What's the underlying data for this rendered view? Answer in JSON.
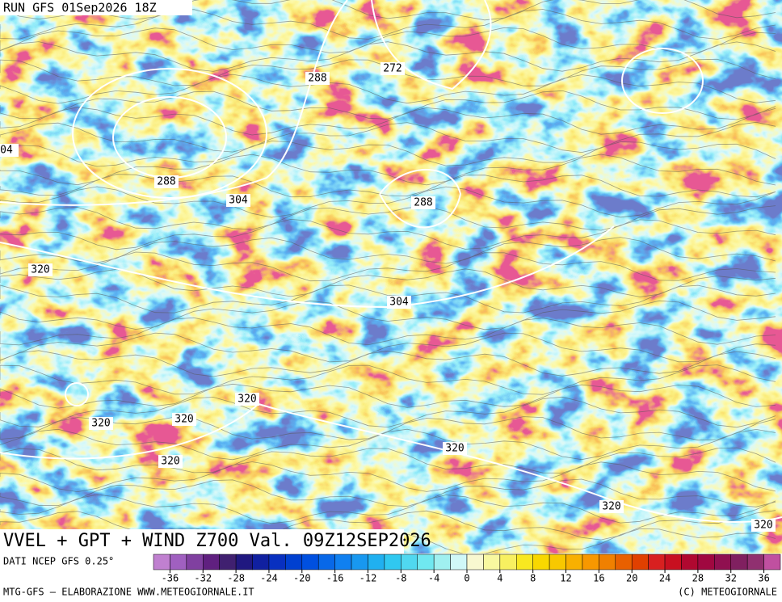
{
  "header": {
    "run": "RUN GFS 01Sep2026 18Z"
  },
  "map": {
    "contour_labels": [
      "288",
      "272",
      "288",
      "04",
      "304",
      "288",
      "320",
      "304",
      "320",
      "320",
      "320",
      "320",
      "320",
      "320",
      "320"
    ]
  },
  "footer": {
    "title": "VVEL + GPT + WIND Z700 Val. 09Z12SEP2026",
    "source": "DATI NCEP GFS 0.25°",
    "credit": "MTG-GFS — ELABORAZIONE WWW.METEOGIORNALE.IT",
    "copyright": "(C) METEOGIORNALE"
  },
  "colorbar": {
    "ticks": [
      -36,
      -32,
      -28,
      -24,
      -20,
      -16,
      -12,
      -8,
      -4,
      0,
      4,
      8,
      12,
      16,
      20,
      24,
      28,
      32,
      36
    ],
    "colors": [
      "#c080d0",
      "#a060c0",
      "#8040a0",
      "#602080",
      "#402070",
      "#201880",
      "#1020a0",
      "#0830c0",
      "#0040d0",
      "#0050e0",
      "#0868e8",
      "#1080f0",
      "#1898f0",
      "#20b0f0",
      "#30c8f0",
      "#50d8f0",
      "#70e8f0",
      "#a0f0f0",
      "#d0f8f8",
      "#f8f8d0",
      "#f8f8a0",
      "#f8f060",
      "#f8e820",
      "#f8d800",
      "#f8c800",
      "#f8b000",
      "#f89800",
      "#f08000",
      "#e86000",
      "#e04000",
      "#d82020",
      "#c81020",
      "#b00830",
      "#a00840",
      "#901050",
      "#802060",
      "#903070",
      "#c050a0"
    ]
  }
}
